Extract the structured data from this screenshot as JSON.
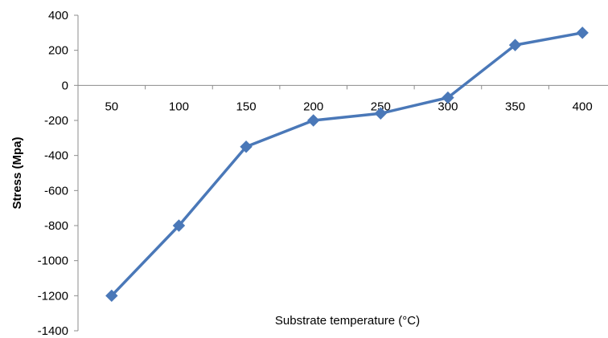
{
  "chart_data": {
    "type": "line",
    "categories": [
      "50",
      "100",
      "150",
      "200",
      "250",
      "300",
      "350",
      "400"
    ],
    "series": [
      {
        "values": [
          -1200,
          -800,
          -350,
          -200,
          -160,
          -70,
          230,
          300
        ],
        "color": "#4a78b8",
        "marker": "diamond"
      }
    ],
    "xlabel": "Substrate temperature (°C)",
    "ylabel": "Stress (Mpa)",
    "ylim": [
      -1400,
      400
    ],
    "yticks": [
      "400",
      "200",
      "0",
      "-200",
      "-400",
      "-600",
      "-800",
      "-1000",
      "-1200",
      "-1400"
    ],
    "grid": false,
    "legend": "none"
  }
}
